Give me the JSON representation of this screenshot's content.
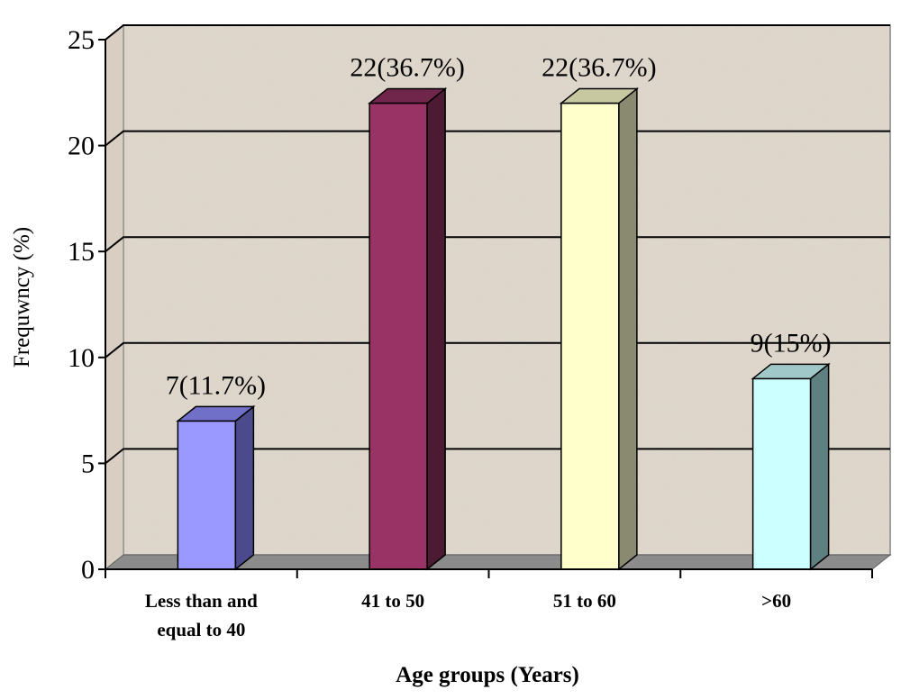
{
  "chart_data": {
    "type": "bar",
    "title": "",
    "xlabel": "Age groups (Years)",
    "ylabel": "Frequwncy (%)",
    "ylim": [
      0,
      25
    ],
    "yticks": [
      0,
      5,
      10,
      15,
      20,
      25
    ],
    "grid": true,
    "style": "3d",
    "categories": [
      [
        "Less than and",
        "equal to 40"
      ],
      [
        "41 to 50"
      ],
      [
        "51 to 60"
      ],
      [
        ">60"
      ]
    ],
    "values": [
      7,
      22,
      22,
      9
    ],
    "data_labels": [
      "7(11.7%)",
      "22(36.7%)",
      "22(36.7%)",
      "9(15%)"
    ],
    "colors": {
      "bars": [
        "#9999ff",
        "#993366",
        "#ffffcc",
        "#ccffff"
      ],
      "bar_sides": [
        "#4a4a8c",
        "#4d1a33",
        "#8a8a70",
        "#5f8080"
      ],
      "bar_tops": [
        "#7070c8",
        "#70264a",
        "#c8c8a0",
        "#a0c8c8"
      ],
      "plot_background": "#e2dace",
      "floor": "#8c8c8c",
      "gridlines": "#000000"
    }
  }
}
